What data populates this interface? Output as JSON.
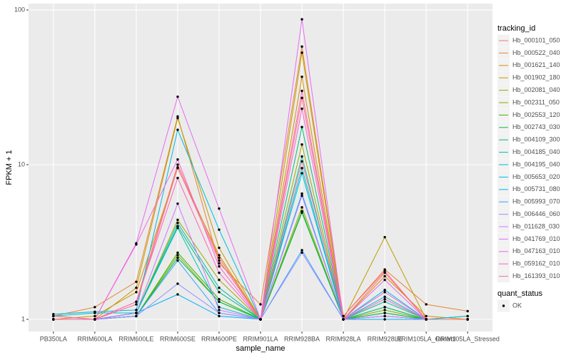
{
  "chart_data": {
    "type": "line",
    "x_label": "sample_name",
    "y_label": "FPKM + 1",
    "log_y": true,
    "grid": true,
    "categories": [
      "PB350LA",
      "RRIM600LA",
      "RRIM600LE",
      "RRIM600SE",
      "RRIM600PE",
      "RRIM901LA",
      "RRIM928BA",
      "RRIM928LA",
      "RRIM928LE",
      "RRIM105LA_Control",
      "RRIM105LA_Stressed"
    ],
    "ylim": [
      0.835,
      110
    ],
    "yticks": [
      1,
      10,
      100
    ],
    "legend_title": "tracking_id",
    "point_legend": {
      "title": "quant_status",
      "labels": [
        "OK"
      ],
      "color": "#000000"
    },
    "series": [
      {
        "name": "Hb_000101_050",
        "color": "#F8766D",
        "values": [
          1.0,
          1.0,
          1.3,
          10.0,
          2.5,
          1.0,
          27,
          1.0,
          2.0,
          1.0,
          1.0
        ]
      },
      {
        "name": "Hb_000522_040",
        "color": "#EA8331",
        "values": [
          1.05,
          1.2,
          1.75,
          20.5,
          2.3,
          1.25,
          58,
          1.05,
          2.1,
          1.25,
          1.13
        ]
      },
      {
        "name": "Hb_001621_140",
        "color": "#D89000",
        "values": [
          1.0,
          1.05,
          1.5,
          9.5,
          2.6,
          1.0,
          37,
          1.0,
          1.9,
          1.05,
          1.0
        ]
      },
      {
        "name": "Hb_001902_180",
        "color": "#C09B00",
        "values": [
          1.0,
          1.0,
          1.6,
          20,
          2.9,
          1.0,
          53,
          1.0,
          3.4,
          1.0,
          1.0
        ]
      },
      {
        "name": "Hb_002081_040",
        "color": "#A3A500",
        "values": [
          1.0,
          1.0,
          1.1,
          4.4,
          1.8,
          1.0,
          13.5,
          1.0,
          1.2,
          1.0,
          1.0
        ]
      },
      {
        "name": "Hb_002311_050",
        "color": "#7CAE00",
        "values": [
          1.0,
          1.0,
          1.05,
          2.6,
          1.3,
          1.0,
          5.3,
          1.0,
          1.15,
          1.0,
          1.0
        ]
      },
      {
        "name": "Hb_002553_120",
        "color": "#39B600",
        "values": [
          1.0,
          1.0,
          1.05,
          2.7,
          1.35,
          1.0,
          5.0,
          1.0,
          1.1,
          1.0,
          1.0
        ]
      },
      {
        "name": "Hb_002743_030",
        "color": "#00BB4E",
        "values": [
          1.0,
          1.0,
          1.05,
          2.5,
          1.3,
          1.0,
          4.9,
          1.0,
          1.1,
          1.0,
          1.0
        ]
      },
      {
        "name": "Hb_004109_300",
        "color": "#00BF7D",
        "values": [
          1.05,
          1.0,
          1.1,
          4.0,
          1.5,
          1.0,
          17.5,
          1.0,
          1.2,
          1.0,
          1.0
        ]
      },
      {
        "name": "Hb_004185_040",
        "color": "#00C1A3",
        "values": [
          1.0,
          1.0,
          1.1,
          4.2,
          1.6,
          1.0,
          11.3,
          1.0,
          1.3,
          1.0,
          1.05
        ]
      },
      {
        "name": "Hb_004195_040",
        "color": "#00BFC4",
        "values": [
          1.05,
          1.1,
          1.1,
          3.9,
          1.2,
          1.0,
          9.5,
          1.0,
          1.4,
          1.0,
          1.05
        ]
      },
      {
        "name": "Hb_005653_020",
        "color": "#00BAE0",
        "values": [
          1.08,
          1.12,
          1.15,
          16.8,
          3.8,
          1.0,
          8.8,
          1.0,
          1.55,
          1.0,
          1.0
        ]
      },
      {
        "name": "Hb_005731_080",
        "color": "#00B0F6",
        "values": [
          1.0,
          1.0,
          1.1,
          1.45,
          1.05,
          1.0,
          6.5,
          1.0,
          1.0,
          1.0,
          1.0
        ]
      },
      {
        "name": "Hb_005993_070",
        "color": "#35A2FF",
        "values": [
          1.0,
          1.0,
          1.05,
          2.4,
          1.1,
          1.0,
          2.8,
          1.0,
          1.05,
          1.0,
          1.0
        ]
      },
      {
        "name": "Hb_006446_060",
        "color": "#9590FF",
        "values": [
          1.0,
          1.0,
          1.05,
          1.7,
          1.1,
          1.0,
          2.7,
          1.0,
          1.05,
          1.0,
          1.0
        ]
      },
      {
        "name": "Hb_011628_030",
        "color": "#C77CFF",
        "values": [
          1.0,
          1.0,
          1.1,
          5.6,
          1.15,
          1.0,
          6.3,
          1.0,
          1.05,
          1.0,
          1.0
        ]
      },
      {
        "name": "Hb_041769_010",
        "color": "#E76BF3",
        "values": [
          1.0,
          1.0,
          3.1,
          27.5,
          5.2,
          1.0,
          87,
          1.0,
          1.8,
          1.0,
          1.0
        ]
      },
      {
        "name": "Hb_047163_010",
        "color": "#FA62DB",
        "values": [
          1.0,
          1.0,
          3.05,
          10.8,
          2.2,
          1.0,
          23,
          1.0,
          1.5,
          1.0,
          1.0
        ]
      },
      {
        "name": "Hb_059162_010",
        "color": "#FF62BC",
        "values": [
          1.0,
          1.0,
          1.3,
          8.2,
          2.0,
          1.0,
          30,
          1.0,
          1.35,
          1.0,
          1.0
        ]
      },
      {
        "name": "Hb_161393_010",
        "color": "#FF6C91",
        "values": [
          1.05,
          1.0,
          1.25,
          9.6,
          2.4,
          1.0,
          10.5,
          1.05,
          2.05,
          1.0,
          1.0
        ]
      }
    ]
  }
}
